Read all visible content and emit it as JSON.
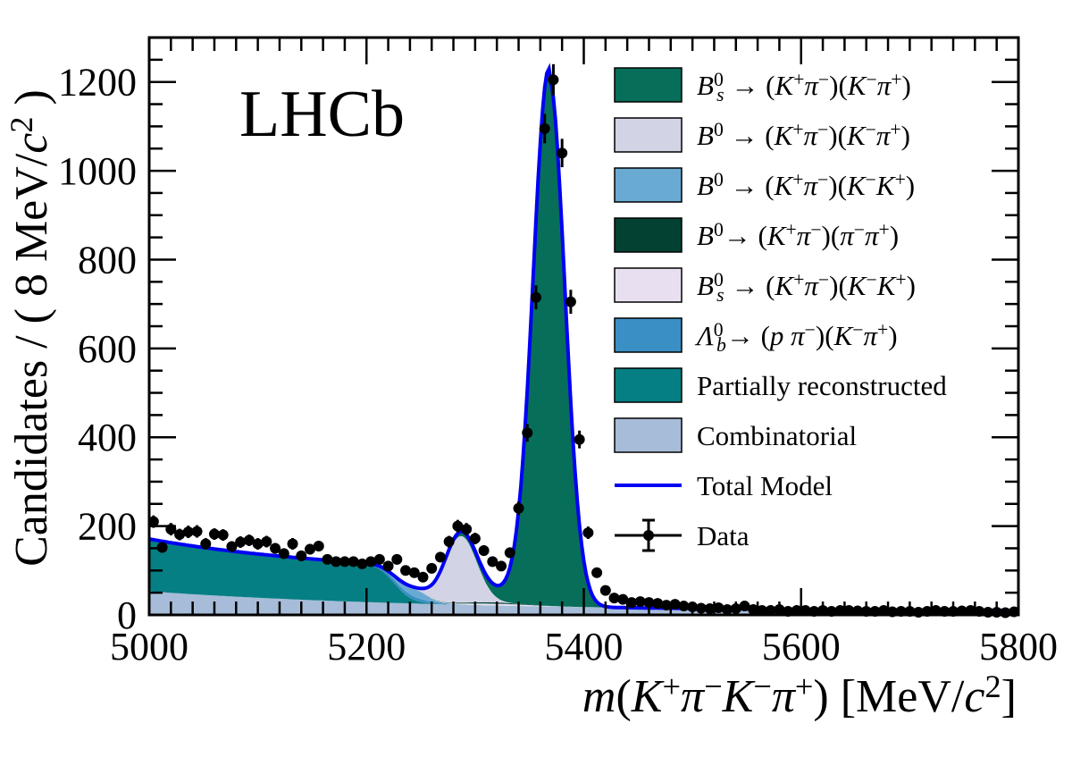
{
  "chart_data": {
    "type": "area",
    "experiment_label": "LHCb",
    "xlabel": {
      "base": "m(",
      "m": "m",
      "K1": "K",
      "K1sup": "+",
      "pi1": "π",
      "pi1sup": "−",
      "K2": "K",
      "K2sup": "−",
      "pi2": "π",
      "pi2sup": "+",
      "close": ")",
      "unit_open": " [MeV/",
      "c": "c",
      "csup": "2",
      "unit_close": "]"
    },
    "ylabel": {
      "prefix": "Candidates / ( 8 MeV/",
      "c": "c",
      "csup": "2",
      "suffix": " )"
    },
    "xlim": [
      5000,
      5800
    ],
    "ylim": [
      0,
      1300
    ],
    "x_ticks": [
      "5000",
      "5200",
      "5400",
      "5600",
      "5800"
    ],
    "y_ticks": [
      "0",
      "200",
      "400",
      "600",
      "800",
      "1000",
      "1200"
    ],
    "colors": {
      "bs_kpikpi": "#076E5A",
      "bd_kpikpi": "#D3D3E6",
      "bd_kpikk": "#69AAD3",
      "bd_kpipipi": "#034233",
      "bs_kpikk": "#E8E0F0",
      "lambdab": "#3A8FC4",
      "partial": "#057F84",
      "combinatorial": "#A7BCD9",
      "total": "#0000F5",
      "data": "#000000"
    },
    "legend": [
      {
        "key": "bs_kpikpi",
        "parts": [
          [
            "B",
            "i"
          ],
          [
            "0",
            "sup"
          ],
          [
            "s",
            "sub"
          ],
          [
            " → (",
            ""
          ],
          [
            "K",
            "i"
          ],
          [
            "+",
            "sup"
          ],
          [
            "π",
            "i"
          ],
          [
            "−",
            "sup"
          ],
          [
            ")(",
            ""
          ],
          [
            "K",
            "i"
          ],
          [
            "−",
            "sup"
          ],
          [
            "π",
            "i"
          ],
          [
            "+",
            "sup"
          ],
          [
            ")",
            ""
          ]
        ]
      },
      {
        "key": "bd_kpikpi",
        "parts": [
          [
            "B",
            "i"
          ],
          [
            "0",
            "sup"
          ],
          [
            " → (",
            ""
          ],
          [
            "K",
            "i"
          ],
          [
            "+",
            "sup"
          ],
          [
            "π",
            "i"
          ],
          [
            "−",
            "sup"
          ],
          [
            ")(",
            ""
          ],
          [
            "K",
            "i"
          ],
          [
            "−",
            "sup"
          ],
          [
            "π",
            "i"
          ],
          [
            "+",
            "sup"
          ],
          [
            ")",
            ""
          ]
        ]
      },
      {
        "key": "bd_kpikk",
        "parts": [
          [
            "B",
            "i"
          ],
          [
            "0",
            "sup"
          ],
          [
            " → (",
            ""
          ],
          [
            "K",
            "i"
          ],
          [
            "+",
            "sup"
          ],
          [
            "π",
            "i"
          ],
          [
            "−",
            "sup"
          ],
          [
            ")(",
            ""
          ],
          [
            "K",
            "i"
          ],
          [
            "−",
            "sup"
          ],
          [
            "K",
            "i"
          ],
          [
            "+",
            "sup"
          ],
          [
            ")",
            ""
          ]
        ]
      },
      {
        "key": "bd_kpipipi",
        "parts": [
          [
            "B",
            "i"
          ],
          [
            "0",
            "sup"
          ],
          [
            "→ (",
            ""
          ],
          [
            "K",
            "i"
          ],
          [
            "+",
            "sup"
          ],
          [
            "π",
            "i"
          ],
          [
            "−",
            "sup"
          ],
          [
            ")(",
            ""
          ],
          [
            "π",
            "i"
          ],
          [
            "−",
            "sup"
          ],
          [
            "π",
            "i"
          ],
          [
            "+",
            "sup"
          ],
          [
            ")",
            ""
          ]
        ]
      },
      {
        "key": "bs_kpikk",
        "parts": [
          [
            "B",
            "i"
          ],
          [
            "0",
            "sup"
          ],
          [
            "s",
            "sub"
          ],
          [
            " → (",
            ""
          ],
          [
            "K",
            "i"
          ],
          [
            "+",
            "sup"
          ],
          [
            "π",
            "i"
          ],
          [
            "−",
            "sup"
          ],
          [
            ")(",
            ""
          ],
          [
            "K",
            "i"
          ],
          [
            "−",
            "sup"
          ],
          [
            "K",
            "i"
          ],
          [
            "+",
            "sup"
          ],
          [
            ")",
            ""
          ]
        ]
      },
      {
        "key": "lambdab",
        "parts": [
          [
            "Λ",
            "i"
          ],
          [
            "0",
            "sup"
          ],
          [
            "b",
            "sub"
          ],
          [
            "→ (",
            ""
          ],
          [
            "p",
            "i"
          ],
          [
            " ",
            ""
          ],
          [
            "π",
            "i"
          ],
          [
            "−",
            "sup"
          ],
          [
            ")(",
            ""
          ],
          [
            "K",
            "i"
          ],
          [
            "−",
            "sup"
          ],
          [
            "π",
            "i"
          ],
          [
            "+",
            "sup"
          ],
          [
            ")",
            ""
          ]
        ]
      },
      {
        "key": "partial",
        "parts": [
          [
            "Partially reconstructed",
            ""
          ]
        ]
      },
      {
        "key": "combinatorial",
        "parts": [
          [
            "Combinatorial",
            ""
          ]
        ]
      },
      {
        "key": "total",
        "kind": "line",
        "parts": [
          [
            "Total Model",
            ""
          ]
        ]
      },
      {
        "key": "data",
        "kind": "marker",
        "parts": [
          [
            "Data",
            ""
          ]
        ]
      }
    ],
    "data_points": {
      "x": [
        5004,
        5012,
        5020,
        5028,
        5036,
        5044,
        5052,
        5060,
        5068,
        5076,
        5084,
        5092,
        5100,
        5108,
        5116,
        5124,
        5132,
        5140,
        5148,
        5156,
        5164,
        5172,
        5180,
        5188,
        5196,
        5204,
        5212,
        5220,
        5228,
        5236,
        5244,
        5252,
        5260,
        5268,
        5276,
        5284,
        5292,
        5300,
        5308,
        5316,
        5324,
        5332,
        5340,
        5348,
        5356,
        5364,
        5372,
        5380,
        5388,
        5396,
        5404,
        5412,
        5420,
        5428,
        5436,
        5444,
        5452,
        5460,
        5468,
        5476,
        5484,
        5492,
        5500,
        5508,
        5516,
        5524,
        5532,
        5540,
        5548,
        5556,
        5564,
        5572,
        5580,
        5588,
        5596,
        5604,
        5612,
        5620,
        5628,
        5636,
        5644,
        5652,
        5660,
        5668,
        5676,
        5684,
        5692,
        5700,
        5708,
        5716,
        5724,
        5732,
        5740,
        5748,
        5756,
        5764,
        5772,
        5780,
        5788,
        5796
      ],
      "y": [
        210,
        152,
        193,
        181,
        187,
        188,
        160,
        182,
        180,
        154,
        164,
        168,
        160,
        165,
        150,
        138,
        160,
        133,
        148,
        155,
        125,
        120,
        120,
        120,
        115,
        120,
        125,
        110,
        125,
        100,
        95,
        85,
        105,
        130,
        165,
        200,
        193,
        172,
        145,
        120,
        110,
        140,
        240,
        410,
        715,
        1095,
        1205,
        1040,
        705,
        395,
        185,
        95,
        55,
        38,
        35,
        28,
        30,
        28,
        26,
        22,
        24,
        20,
        18,
        15,
        14,
        16,
        12,
        14,
        20,
        12,
        10,
        10,
        12,
        8,
        10,
        10,
        8,
        10,
        8,
        10,
        10,
        9,
        8,
        8,
        10,
        7,
        8,
        8,
        6,
        8,
        10,
        8,
        8,
        9,
        10,
        8,
        6,
        6,
        5,
        7
      ],
      "err": [
        14,
        12,
        14,
        13,
        14,
        14,
        13,
        13,
        13,
        12,
        13,
        13,
        13,
        13,
        12,
        12,
        13,
        12,
        12,
        12,
        11,
        11,
        11,
        11,
        11,
        11,
        11,
        10,
        11,
        10,
        10,
        9,
        10,
        11,
        13,
        14,
        14,
        13,
        12,
        11,
        10,
        12,
        15,
        20,
        27,
        33,
        35,
        32,
        27,
        20,
        14,
        10,
        7,
        6,
        6,
        5,
        5,
        5,
        5,
        5,
        5,
        4,
        4,
        4,
        4,
        4,
        3,
        4,
        4,
        3,
        3,
        3,
        3,
        3,
        3,
        3,
        3,
        3,
        3,
        3,
        3,
        3,
        3,
        3,
        3,
        3,
        3,
        3,
        2,
        3,
        3,
        3,
        3,
        3,
        3,
        3,
        2,
        2,
        2,
        3
      ]
    }
  }
}
